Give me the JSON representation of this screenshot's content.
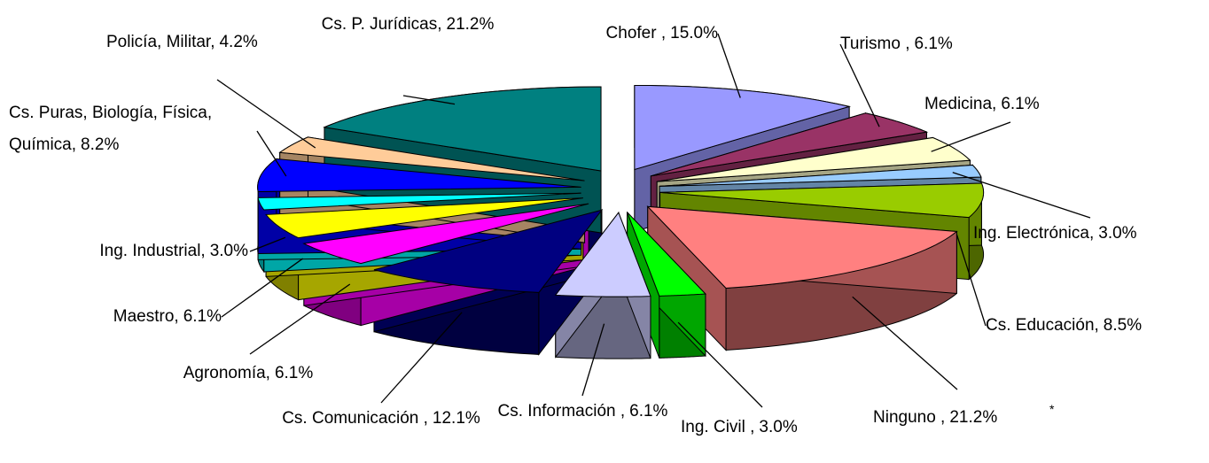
{
  "chart_data": {
    "type": "pie3d",
    "categories": [
      "Chofer ,",
      "Turismo ,",
      "Medicina,",
      "Ing. Electrónica,",
      "Cs. Educación,",
      "Ninguno ,",
      "Ing. Civil ,",
      "Cs. Información ,",
      "Cs. Comunicación ,",
      "Agronomía,",
      "Maestro,",
      "Ing. Industrial,",
      "Cs. Puras, Biología, Física, Química,",
      "Policía, Militar,",
      "Cs. P. Jurídicas,"
    ],
    "values": [
      15.0,
      6.1,
      6.1,
      3.0,
      8.5,
      21.2,
      3.0,
      6.1,
      12.1,
      6.1,
      6.1,
      3.0,
      8.2,
      4.2,
      21.2
    ],
    "value_labels": [
      "15.0%",
      "6.1%",
      "6.1%",
      "3.0%",
      "8.5%",
      "21.2%",
      "3.0%",
      "6.1%",
      "12.1%",
      "6.1%",
      "6.1%",
      "3.0%",
      "8.2%",
      "4.2%",
      "21.2%"
    ],
    "colors": [
      "#9999ff",
      "#993366",
      "#ffffcc",
      "#99ccff",
      "#99cc00",
      "#ff8080",
      "#00ff00",
      "#ccccff",
      "#000080",
      "#ff00ff",
      "#ffff00",
      "#00ffff",
      "#0000ff",
      "#ffcc99",
      "#008080"
    ],
    "annotation": "*"
  }
}
